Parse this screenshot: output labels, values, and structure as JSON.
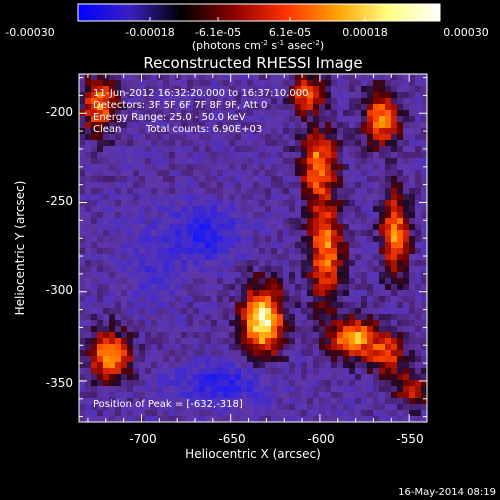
{
  "colorbar": {
    "ticks": [
      "-0.00030",
      "-0.00018",
      "-6.1e-05",
      "6.1e-05",
      "0.00018",
      "0.00030"
    ],
    "unit_label": "(photons cm",
    "unit_exp1": "-2",
    "unit_mid": " s",
    "unit_exp2": "-1",
    "unit_mid2": " asec",
    "unit_exp3": "-2",
    "unit_end": ")",
    "range": [
      -0.0003,
      0.0003
    ],
    "gradient": [
      "#0000ff",
      "#3a20c0",
      "#000000",
      "#8a0000",
      "#ff3000",
      "#ffa000",
      "#ffff80",
      "#ffffff"
    ]
  },
  "title": "Reconstructed RHESSI Image",
  "annotations": {
    "time": "11-Jun-2012 16:32:20.000 to 16:37:10.000",
    "detectors": "Detectors: 3F 5F 6F 7F 8F 9F, Att 0",
    "energy": "Energy Range: 25.0 - 50.0 keV",
    "algorithm": "Clean",
    "counts": "Total counts: 6.90E+03",
    "peak": "Position of Peak = [-632,-318]"
  },
  "axes": {
    "xlabel": "Heliocentric X (arcsec)",
    "ylabel": "Heliocentric Y (arcsec)",
    "xticks": [
      "-700",
      "-650",
      "-600",
      "-550"
    ],
    "yticks": [
      "-200",
      "-250",
      "-300",
      "-350"
    ],
    "xlim": [
      -735,
      -540
    ],
    "ylim": [
      -373,
      -178
    ]
  },
  "footer": {
    "date": "16-May-2014 08:19"
  }
}
